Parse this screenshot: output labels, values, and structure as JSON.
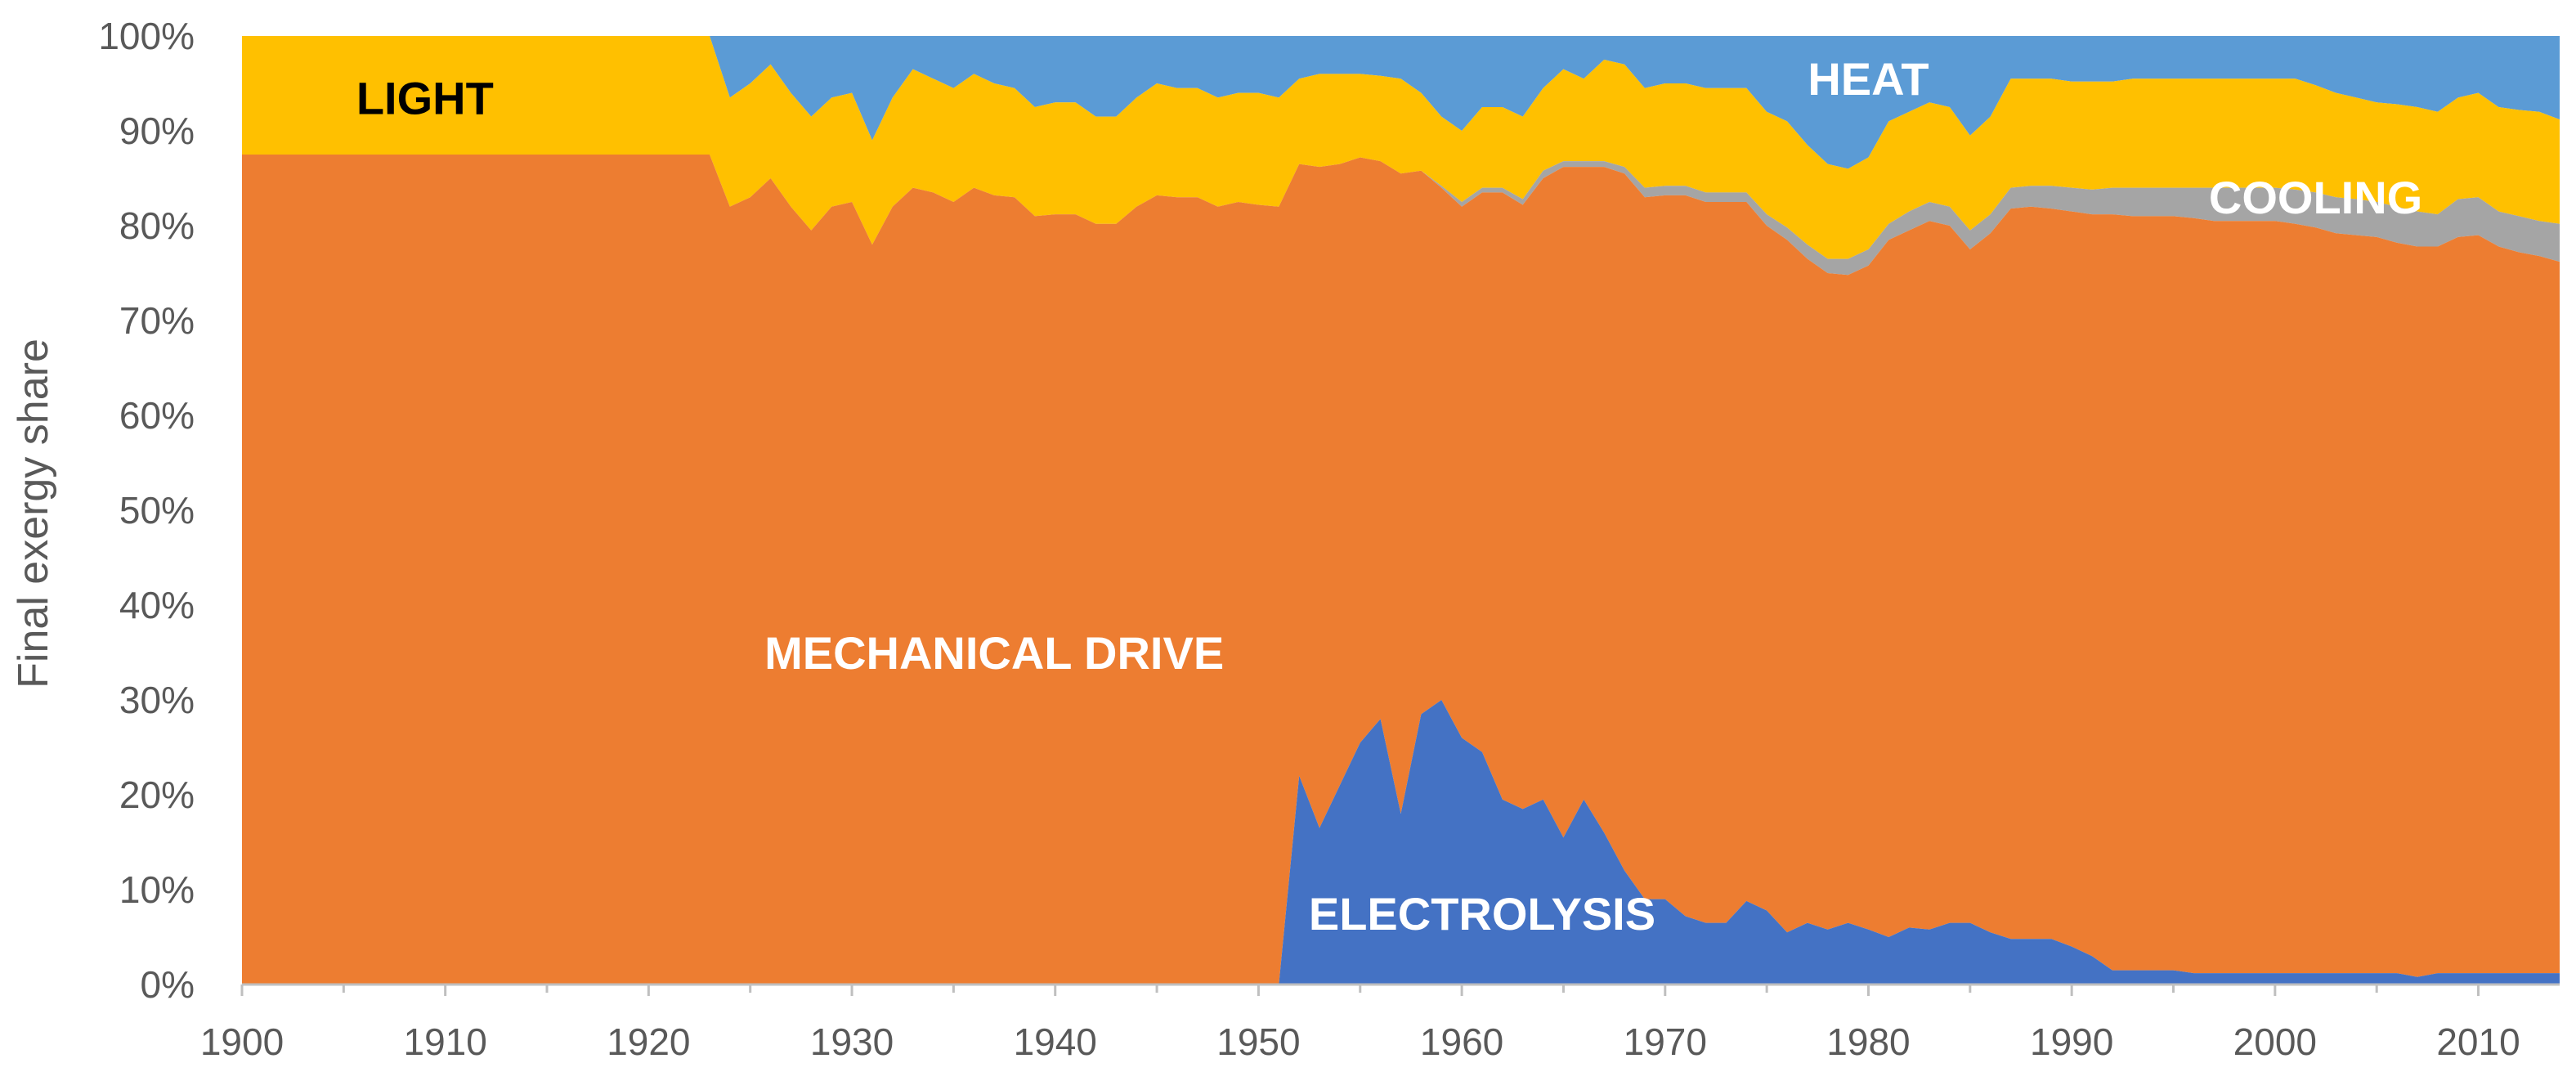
{
  "chart_data": {
    "type": "area",
    "title": "",
    "xlabel": "",
    "ylabel": "Final exergy share",
    "xlim": [
      1900,
      2014
    ],
    "ylim": [
      0,
      100
    ],
    "x_ticks": [
      "1900",
      "1910",
      "1920",
      "1930",
      "1940",
      "1950",
      "1960",
      "1970",
      "1980",
      "1990",
      "2000",
      "2010"
    ],
    "y_ticks": [
      "0%",
      "10%",
      "20%",
      "30%",
      "40%",
      "50%",
      "60%",
      "70%",
      "80%",
      "90%",
      "100%"
    ],
    "stack_order": [
      "electrolysis",
      "mechanical_drive",
      "cooling",
      "light",
      "heat"
    ],
    "colors": {
      "electrolysis": "#4472C4",
      "mechanical_drive": "#ED7D31",
      "cooling": "#A5A5A5",
      "light": "#FFC000",
      "heat": "#5B9BD5"
    },
    "labels": {
      "light": "LIGHT",
      "heat": "HEAT",
      "cooling": "COOLING",
      "mechanical_drive": "MECHANICAL DRIVE",
      "electrolysis": "ELECTROLYSIS"
    },
    "label_colors": {
      "light": "#000000",
      "heat": "#ffffff",
      "cooling": "#ffffff",
      "mechanical_drive": "#ffffff",
      "electrolysis": "#ffffff"
    },
    "label_anchor": {
      "light": [
        1909,
        93.5
      ],
      "heat": [
        1980,
        95.5
      ],
      "cooling": [
        2002,
        83
      ],
      "mechanical_drive": [
        1937,
        35
      ],
      "electrolysis": [
        1961,
        7.5
      ]
    },
    "boundaries": {
      "electrolysis_top": [
        [
          1900,
          0
        ],
        [
          1951,
          0
        ],
        [
          1952,
          22
        ],
        [
          1953,
          16.5
        ],
        [
          1954,
          21
        ],
        [
          1955,
          25.5
        ],
        [
          1956,
          28
        ],
        [
          1957,
          18
        ],
        [
          1958,
          28.5
        ],
        [
          1959,
          30
        ],
        [
          1960,
          26
        ],
        [
          1961,
          24.5
        ],
        [
          1962,
          19.5
        ],
        [
          1963,
          18.5
        ],
        [
          1964,
          19.5
        ],
        [
          1965,
          15.5
        ],
        [
          1966,
          19.5
        ],
        [
          1967,
          16
        ],
        [
          1968,
          12
        ],
        [
          1969,
          9
        ],
        [
          1970,
          9
        ],
        [
          1971,
          7.2
        ],
        [
          1972,
          6.5
        ],
        [
          1973,
          6.5
        ],
        [
          1974,
          8.8
        ],
        [
          1975,
          7.8
        ],
        [
          1976,
          5.5
        ],
        [
          1977,
          6.5
        ],
        [
          1978,
          5.8
        ],
        [
          1979,
          6.5
        ],
        [
          1980,
          5.8
        ],
        [
          1981,
          5
        ],
        [
          1982,
          6
        ],
        [
          1983,
          5.8
        ],
        [
          1984,
          6.5
        ],
        [
          1985,
          6.5
        ],
        [
          1986,
          5.5
        ],
        [
          1987,
          4.8
        ],
        [
          1988,
          4.8
        ],
        [
          1989,
          4.8
        ],
        [
          1990,
          4
        ],
        [
          1991,
          3
        ],
        [
          1992,
          1.5
        ],
        [
          1993,
          1.5
        ],
        [
          1994,
          1.5
        ],
        [
          1995,
          1.5
        ],
        [
          1996,
          1.2
        ],
        [
          1997,
          1.2
        ],
        [
          1998,
          1.2
        ],
        [
          1999,
          1.2
        ],
        [
          2000,
          1.2
        ],
        [
          2001,
          1.2
        ],
        [
          2002,
          1.2
        ],
        [
          2003,
          1.2
        ],
        [
          2004,
          1.2
        ],
        [
          2005,
          1.2
        ],
        [
          2006,
          1.2
        ],
        [
          2007,
          0.8
        ],
        [
          2008,
          1.2
        ],
        [
          2009,
          1.2
        ],
        [
          2010,
          1.2
        ],
        [
          2011,
          1.2
        ],
        [
          2012,
          1.2
        ],
        [
          2013,
          1.2
        ],
        [
          2014,
          1.2
        ]
      ],
      "mechanical_top": [
        [
          1900,
          87.5
        ],
        [
          1923,
          87.5
        ],
        [
          1924,
          82
        ],
        [
          1925,
          83
        ],
        [
          1926,
          85
        ],
        [
          1927,
          82
        ],
        [
          1928,
          79.5
        ],
        [
          1929,
          82
        ],
        [
          1930,
          82.5
        ],
        [
          1931,
          78
        ],
        [
          1932,
          82
        ],
        [
          1933,
          84
        ],
        [
          1934,
          83.5
        ],
        [
          1935,
          82.5
        ],
        [
          1936,
          84
        ],
        [
          1937,
          83.2
        ],
        [
          1938,
          83
        ],
        [
          1939,
          81
        ],
        [
          1940,
          81.2
        ],
        [
          1941,
          81.2
        ],
        [
          1942,
          80.2
        ],
        [
          1943,
          80.2
        ],
        [
          1944,
          82
        ],
        [
          1945,
          83.2
        ],
        [
          1946,
          83
        ],
        [
          1947,
          83
        ],
        [
          1948,
          82
        ],
        [
          1949,
          82.5
        ],
        [
          1950,
          82.2
        ],
        [
          1951,
          82
        ],
        [
          1952,
          86.5
        ],
        [
          1953,
          86.2
        ],
        [
          1954,
          86.5
        ],
        [
          1955,
          87.2
        ],
        [
          1956,
          86.8
        ],
        [
          1957,
          85.5
        ],
        [
          1958,
          85.8
        ],
        [
          1959,
          84
        ],
        [
          1960,
          82
        ],
        [
          1961,
          83.5
        ],
        [
          1962,
          83.5
        ],
        [
          1963,
          82.2
        ],
        [
          1964,
          85
        ],
        [
          1965,
          86.2
        ],
        [
          1966,
          86.2
        ],
        [
          1967,
          86.2
        ],
        [
          1968,
          85.5
        ],
        [
          1969,
          83
        ],
        [
          1970,
          83.2
        ],
        [
          1971,
          83.2
        ],
        [
          1972,
          82.5
        ],
        [
          1973,
          82.5
        ],
        [
          1974,
          82.5
        ],
        [
          1975,
          80
        ],
        [
          1976,
          78.5
        ],
        [
          1977,
          76.5
        ],
        [
          1978,
          75
        ],
        [
          1979,
          74.8
        ],
        [
          1980,
          75.8
        ],
        [
          1981,
          78.5
        ],
        [
          1982,
          79.5
        ],
        [
          1983,
          80.5
        ],
        [
          1984,
          80
        ],
        [
          1985,
          77.5
        ],
        [
          1986,
          79.2
        ],
        [
          1987,
          81.8
        ],
        [
          1988,
          82
        ],
        [
          1989,
          81.8
        ],
        [
          1990,
          81.5
        ],
        [
          1991,
          81.2
        ],
        [
          1992,
          81.2
        ],
        [
          1993,
          81
        ],
        [
          1994,
          81
        ],
        [
          1995,
          81
        ],
        [
          1996,
          80.8
        ],
        [
          1997,
          80.5
        ],
        [
          1998,
          80.5
        ],
        [
          1999,
          80.5
        ],
        [
          2000,
          80.5
        ],
        [
          2001,
          80.2
        ],
        [
          2002,
          79.8
        ],
        [
          2003,
          79.2
        ],
        [
          2004,
          79
        ],
        [
          2005,
          78.8
        ],
        [
          2006,
          78.2
        ],
        [
          2007,
          77.8
        ],
        [
          2008,
          77.8
        ],
        [
          2009,
          78.8
        ],
        [
          2010,
          79
        ],
        [
          2011,
          77.8
        ],
        [
          2012,
          77.2
        ],
        [
          2013,
          76.8
        ],
        [
          2014,
          76.2
        ]
      ],
      "cooling_top": [
        [
          1900,
          87.5
        ],
        [
          1923,
          87.5
        ],
        [
          1924,
          82
        ],
        [
          1925,
          83
        ],
        [
          1926,
          85
        ],
        [
          1927,
          82
        ],
        [
          1928,
          79.5
        ],
        [
          1929,
          82
        ],
        [
          1930,
          82.5
        ],
        [
          1931,
          78
        ],
        [
          1932,
          82
        ],
        [
          1933,
          84
        ],
        [
          1934,
          83.5
        ],
        [
          1935,
          82.5
        ],
        [
          1936,
          84
        ],
        [
          1937,
          83.2
        ],
        [
          1938,
          83
        ],
        [
          1939,
          81
        ],
        [
          1940,
          81.2
        ],
        [
          1941,
          81.2
        ],
        [
          1942,
          80.2
        ],
        [
          1943,
          80.2
        ],
        [
          1944,
          82
        ],
        [
          1945,
          83.2
        ],
        [
          1946,
          83
        ],
        [
          1947,
          83
        ],
        [
          1948,
          82
        ],
        [
          1949,
          82.5
        ],
        [
          1950,
          82.2
        ],
        [
          1951,
          82
        ],
        [
          1952,
          86.5
        ],
        [
          1953,
          86.2
        ],
        [
          1954,
          86.5
        ],
        [
          1955,
          87.2
        ],
        [
          1956,
          86.8
        ],
        [
          1957,
          85.5
        ],
        [
          1958,
          85.8
        ],
        [
          1959,
          84.2
        ],
        [
          1960,
          82.5
        ],
        [
          1961,
          84
        ],
        [
          1962,
          84
        ],
        [
          1963,
          82.8
        ],
        [
          1964,
          85.8
        ],
        [
          1965,
          86.8
        ],
        [
          1966,
          86.8
        ],
        [
          1967,
          86.8
        ],
        [
          1968,
          86.2
        ],
        [
          1969,
          84
        ],
        [
          1970,
          84.2
        ],
        [
          1971,
          84.2
        ],
        [
          1972,
          83.5
        ],
        [
          1973,
          83.5
        ],
        [
          1974,
          83.5
        ],
        [
          1975,
          81.2
        ],
        [
          1976,
          79.8
        ],
        [
          1977,
          78
        ],
        [
          1978,
          76.5
        ],
        [
          1979,
          76.5
        ],
        [
          1980,
          77.5
        ],
        [
          1981,
          80.2
        ],
        [
          1982,
          81.5
        ],
        [
          1983,
          82.5
        ],
        [
          1984,
          82
        ],
        [
          1985,
          79.5
        ],
        [
          1986,
          81.2
        ],
        [
          1987,
          84
        ],
        [
          1988,
          84.2
        ],
        [
          1989,
          84.2
        ],
        [
          1990,
          84
        ],
        [
          1991,
          83.8
        ],
        [
          1992,
          84
        ],
        [
          1993,
          84
        ],
        [
          1994,
          84
        ],
        [
          1995,
          84
        ],
        [
          1996,
          84
        ],
        [
          1997,
          84
        ],
        [
          1998,
          84
        ],
        [
          1999,
          84
        ],
        [
          2000,
          84
        ],
        [
          2001,
          83.8
        ],
        [
          2002,
          83.5
        ],
        [
          2003,
          83
        ],
        [
          2004,
          82.8
        ],
        [
          2005,
          82.5
        ],
        [
          2006,
          82
        ],
        [
          2007,
          81.5
        ],
        [
          2008,
          81.2
        ],
        [
          2009,
          82.8
        ],
        [
          2010,
          83
        ],
        [
          2011,
          81.5
        ],
        [
          2012,
          81
        ],
        [
          2013,
          80.5
        ],
        [
          2014,
          80.2
        ]
      ],
      "light_top": [
        [
          1900,
          100
        ],
        [
          1923,
          100
        ],
        [
          1924,
          93.5
        ],
        [
          1925,
          95
        ],
        [
          1926,
          97
        ],
        [
          1927,
          94
        ],
        [
          1928,
          91.5
        ],
        [
          1929,
          93.5
        ],
        [
          1930,
          94
        ],
        [
          1931,
          89
        ],
        [
          1932,
          93.5
        ],
        [
          1933,
          96.5
        ],
        [
          1934,
          95.5
        ],
        [
          1935,
          94.5
        ],
        [
          1936,
          96
        ],
        [
          1937,
          95
        ],
        [
          1938,
          94.5
        ],
        [
          1939,
          92.5
        ],
        [
          1940,
          93
        ],
        [
          1941,
          93
        ],
        [
          1942,
          91.5
        ],
        [
          1943,
          91.5
        ],
        [
          1944,
          93.5
        ],
        [
          1945,
          95
        ],
        [
          1946,
          94.5
        ],
        [
          1947,
          94.5
        ],
        [
          1948,
          93.5
        ],
        [
          1949,
          94
        ],
        [
          1950,
          94
        ],
        [
          1951,
          93.5
        ],
        [
          1952,
          95.5
        ],
        [
          1953,
          96
        ],
        [
          1954,
          96
        ],
        [
          1955,
          96
        ],
        [
          1956,
          95.8
        ],
        [
          1957,
          95.5
        ],
        [
          1958,
          94
        ],
        [
          1959,
          91.5
        ],
        [
          1960,
          90
        ],
        [
          1961,
          92.5
        ],
        [
          1962,
          92.5
        ],
        [
          1963,
          91.5
        ],
        [
          1964,
          94.5
        ],
        [
          1965,
          96.5
        ],
        [
          1966,
          95.5
        ],
        [
          1967,
          97.5
        ],
        [
          1968,
          97
        ],
        [
          1969,
          94.5
        ],
        [
          1970,
          95
        ],
        [
          1971,
          95
        ],
        [
          1972,
          94.5
        ],
        [
          1973,
          94.5
        ],
        [
          1974,
          94.5
        ],
        [
          1975,
          92
        ],
        [
          1976,
          91
        ],
        [
          1977,
          88.5
        ],
        [
          1978,
          86.5
        ],
        [
          1979,
          86
        ],
        [
          1980,
          87.2
        ],
        [
          1981,
          91
        ],
        [
          1982,
          92
        ],
        [
          1983,
          93
        ],
        [
          1984,
          92.5
        ],
        [
          1985,
          89.5
        ],
        [
          1986,
          91.5
        ],
        [
          1987,
          95.5
        ],
        [
          1988,
          95.5
        ],
        [
          1989,
          95.5
        ],
        [
          1990,
          95.2
        ],
        [
          1991,
          95.2
        ],
        [
          1992,
          95.2
        ],
        [
          1993,
          95.5
        ],
        [
          1994,
          95.5
        ],
        [
          1995,
          95.5
        ],
        [
          1996,
          95.5
        ],
        [
          1997,
          95.5
        ],
        [
          1998,
          95.5
        ],
        [
          1999,
          95.5
        ],
        [
          2000,
          95.5
        ],
        [
          2001,
          95.5
        ],
        [
          2002,
          94.8
        ],
        [
          2003,
          94
        ],
        [
          2004,
          93.5
        ],
        [
          2005,
          93
        ],
        [
          2006,
          92.8
        ],
        [
          2007,
          92.5
        ],
        [
          2008,
          92
        ],
        [
          2009,
          93.5
        ],
        [
          2010,
          94
        ],
        [
          2011,
          92.5
        ],
        [
          2012,
          92.2
        ],
        [
          2013,
          92
        ],
        [
          2014,
          91.2
        ]
      ],
      "heat_top": [
        [
          1900,
          100
        ],
        [
          2014,
          100
        ]
      ]
    }
  }
}
